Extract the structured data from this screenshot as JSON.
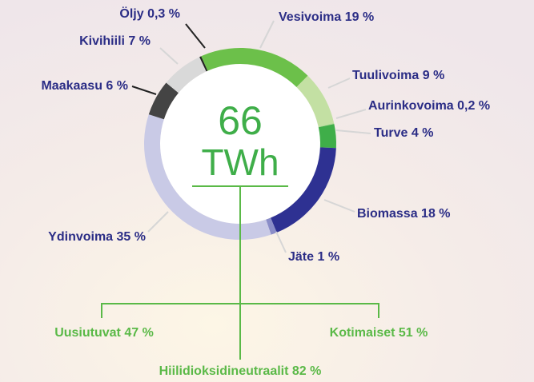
{
  "chart_data": {
    "type": "donut",
    "categories": [
      "Vesivoima",
      "Tuulivoima",
      "Aurinkovoima",
      "Turve",
      "Biomassa",
      "Jäte",
      "Ydinvoima",
      "Maakaasu",
      "Kivihiili",
      "Öljy"
    ],
    "values": [
      19,
      9,
      0.2,
      4,
      18,
      1,
      35,
      6,
      7,
      0.3
    ],
    "value_labels": [
      "19 %",
      "9 %",
      "0,2 %",
      "4 %",
      "18 %",
      "1 %",
      "35 %",
      "6 %",
      "7 %",
      "0,3 %"
    ],
    "colors": [
      "#6cc04a",
      "#c3e0a3",
      "#b5dc98",
      "#3fae49",
      "#2e3192",
      "#8a8dc8",
      "#c9cae6",
      "#444444",
      "#d9d9d9",
      "#222222"
    ],
    "total": 66,
    "unit": "TWh",
    "summary": [
      {
        "name": "Uusiutuvat",
        "value": 47,
        "value_label": "47 %"
      },
      {
        "name": "Kotimaiset",
        "value": 51,
        "value_label": "51 %"
      },
      {
        "name": "Hiilidioksidineutraalit",
        "value": 82,
        "value_label": "82 %"
      }
    ]
  }
}
